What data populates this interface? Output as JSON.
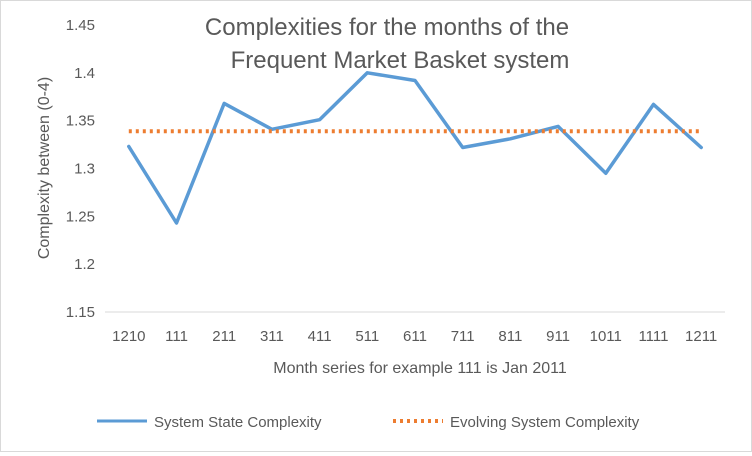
{
  "chart_data": {
    "type": "line",
    "title_lines": [
      "Complexities for the months of the",
      "Frequent Market Basket system"
    ],
    "xlabel": "Month series for example 111 is Jan 2011",
    "ylabel": "Complexity between (0-4)",
    "categories": [
      "1210",
      "111",
      "211",
      "311",
      "411",
      "511",
      "611",
      "711",
      "811",
      "911",
      "1011",
      "1111",
      "1211"
    ],
    "yticks": [
      "1.15",
      "1.2",
      "1.25",
      "1.3",
      "1.35",
      "1.4",
      "1.45"
    ],
    "ylim": [
      1.15,
      1.45
    ],
    "grid": false,
    "legend_position": "bottom",
    "series": [
      {
        "name": "System State Complexity",
        "color": "#5b9bd5",
        "style": "solid",
        "values": [
          1.323,
          1.243,
          1.368,
          1.341,
          1.351,
          1.4,
          1.392,
          1.322,
          1.331,
          1.344,
          1.295,
          1.367,
          1.322
        ]
      },
      {
        "name": "Evolving System Complexity",
        "color": "#ed7d31",
        "style": "dotted",
        "values": [
          1.339,
          1.339,
          1.339,
          1.339,
          1.339,
          1.339,
          1.339,
          1.339,
          1.339,
          1.339,
          1.339,
          1.339,
          1.339
        ]
      }
    ]
  }
}
